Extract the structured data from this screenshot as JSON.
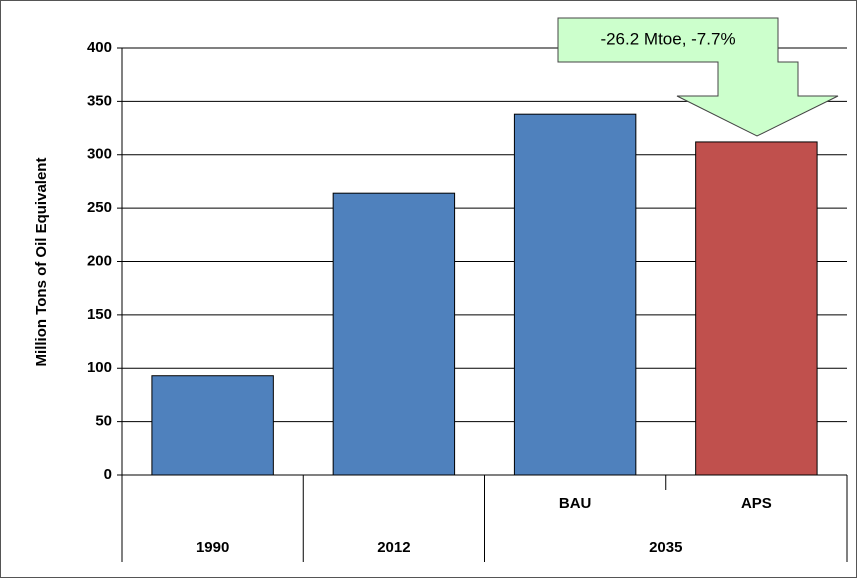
{
  "chart_data": {
    "type": "bar",
    "y_label": "Million Tons of Oil Equivalent",
    "categories": [
      [
        "1990",
        null
      ],
      [
        "2012",
        null
      ],
      [
        "2035",
        "BAU"
      ],
      [
        "2035",
        "APS"
      ]
    ],
    "values": [
      93,
      264,
      338,
      312
    ],
    "colors": [
      "#4f81bd",
      "#4f81bd",
      "#4f81bd",
      "#c0504d"
    ],
    "ylim": [
      0,
      400
    ],
    "yticks": [
      0,
      50,
      100,
      150,
      200,
      250,
      300,
      350,
      400
    ],
    "grid": true,
    "annotation": "-26.2 Mtoe, -7.7%"
  }
}
